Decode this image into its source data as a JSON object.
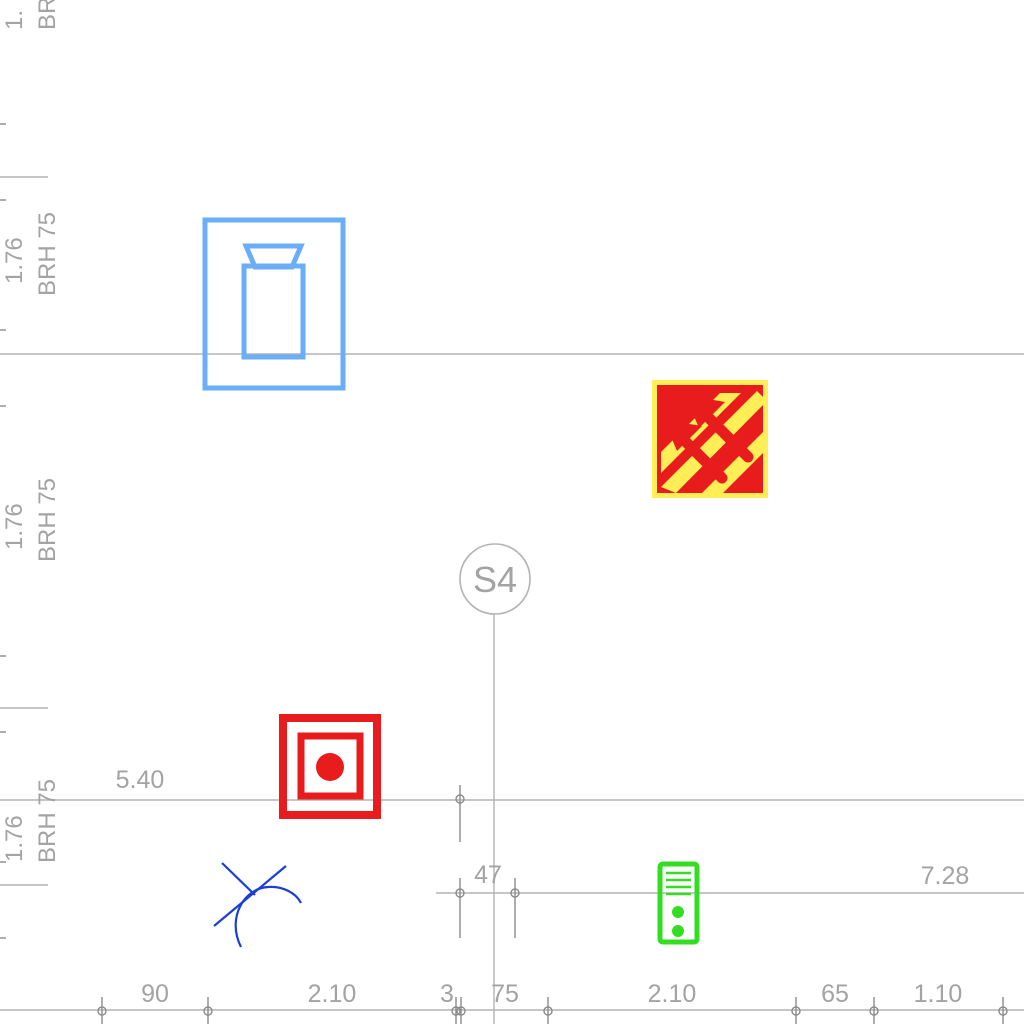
{
  "axis_marker": {
    "label": "S4"
  },
  "wall_labels": [
    {
      "height": "1.76",
      "sill": "BRH 75"
    },
    {
      "height": "1.76",
      "sill": "BRH 75"
    },
    {
      "height": "1.76",
      "sill": "BRH 75"
    }
  ],
  "top_partial_label": {
    "height": "1.",
    "sill": "BRH"
  },
  "dimensions": {
    "row_540": "5.40",
    "row_47": "47",
    "row_728": "7.28",
    "bottom": [
      "90",
      "2.10",
      "3",
      "75",
      "2.10",
      "65",
      "1.10"
    ]
  },
  "symbols": [
    {
      "name": "smoke-extraction-symbol",
      "color": "#6aaef7"
    },
    {
      "name": "fire-escape-direction-sign",
      "color": "#e81c1c",
      "accent": "#ffee55"
    },
    {
      "name": "fire-alarm-call-point",
      "color": "#e81c1c"
    },
    {
      "name": "sprinkler-symbol",
      "color": "#1b3fd6"
    },
    {
      "name": "emergency-lighting-panel",
      "color": "#33dd22"
    }
  ]
}
